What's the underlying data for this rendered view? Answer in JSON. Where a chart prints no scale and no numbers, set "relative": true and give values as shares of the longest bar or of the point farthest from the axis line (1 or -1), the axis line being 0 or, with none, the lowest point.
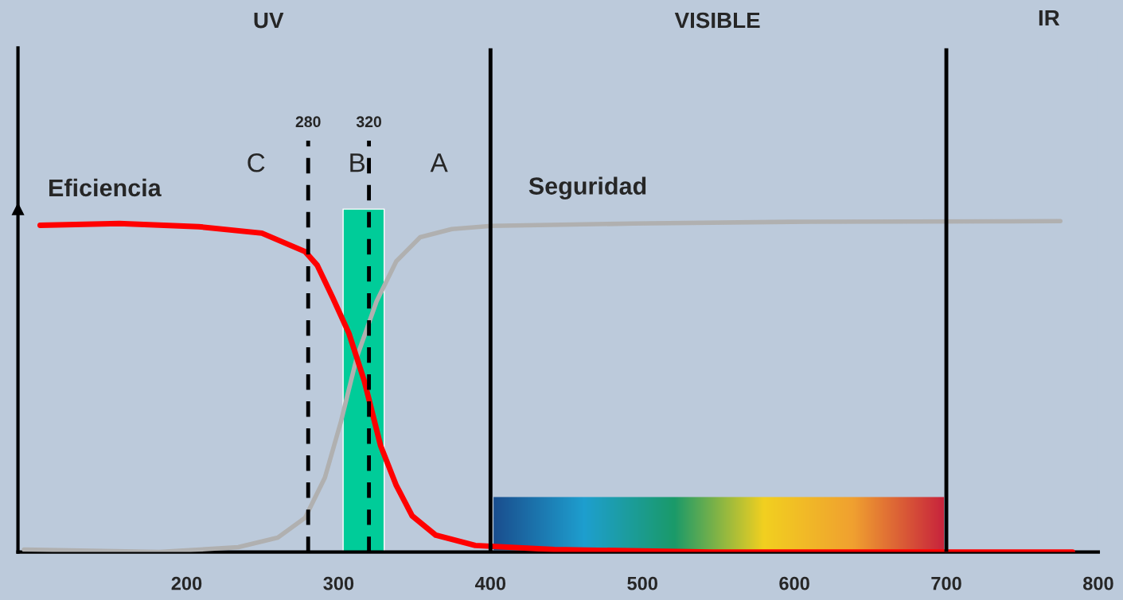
{
  "chart_data": {
    "type": "line",
    "relative": true,
    "xlim": [
      89,
      800
    ],
    "xticks": [
      200,
      300,
      400,
      500,
      600,
      700,
      800
    ],
    "tick_labels": "x",
    "grid": false,
    "legend": false,
    "series": [
      {
        "name": "Eficiencia",
        "color": "#ff0000",
        "x": [
          103.6,
          155.7,
          207.8,
          249.5,
          278,
          286,
          296,
          306.8,
          317,
          327.6,
          338,
          348.5,
          364,
          390,
          442,
          546,
          783
        ],
        "values": [
          0.953,
          0.958,
          0.949,
          0.93,
          0.876,
          0.836,
          0.743,
          0.638,
          0.498,
          0.311,
          0.194,
          0.105,
          0.049,
          0.019,
          0.007,
          0,
          0
        ]
      },
      {
        "name": "Seguridad",
        "color": "#b0b0b0",
        "x": [
          93,
          182,
          234,
          260,
          278,
          291,
          301.6,
          312,
          325,
          338,
          353.7,
          374.5,
          400.5,
          494,
          598,
          775
        ],
        "values": [
          0.007,
          0,
          0.014,
          0.042,
          0.1,
          0.217,
          0.381,
          0.568,
          0.731,
          0.848,
          0.918,
          0.942,
          0.951,
          0.958,
          0.963,
          0.965
        ]
      },
      {
        "type": "bar",
        "color": "#00cc99",
        "x": [
          316.5
        ],
        "values": [
          1
        ]
      }
    ],
    "ref_lines": [
      {
        "axis": "x",
        "value": 280,
        "label": "280",
        "line_style": "dashed",
        "color": "#000000"
      },
      {
        "axis": "x",
        "value": 320,
        "label": "320",
        "line_style": "dashed",
        "color": "#000000"
      },
      {
        "axis": "x",
        "value": 400,
        "label": null,
        "line_style": "solid",
        "color": "#000000"
      },
      {
        "axis": "x",
        "value": 700,
        "label": null,
        "line_style": "solid",
        "color": "#000000"
      }
    ],
    "annotations": [
      "UV",
      "VISIBLE",
      "IR",
      "C",
      "B",
      "A"
    ]
  }
}
